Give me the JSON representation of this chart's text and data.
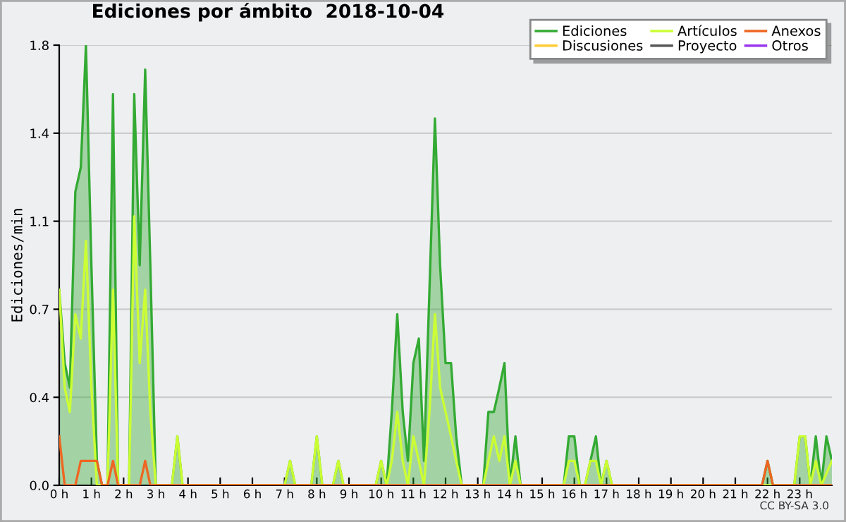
{
  "chart_data": {
    "type": "line",
    "title": "Ediciones por ámbito  2018-10-04",
    "ylabel": "Ediciones/min",
    "xlim": [
      0,
      24
    ],
    "xticks": [
      {
        "value": 0,
        "label": "0 h"
      },
      {
        "value": 1,
        "label": "1 h"
      },
      {
        "value": 2,
        "label": "2 h"
      },
      {
        "value": 3,
        "label": "3 h"
      },
      {
        "value": 4,
        "label": "4 h"
      },
      {
        "value": 5,
        "label": "5 h"
      },
      {
        "value": 6,
        "label": "6 h"
      },
      {
        "value": 7,
        "label": "7 h"
      },
      {
        "value": 8,
        "label": "8 h"
      },
      {
        "value": 9,
        "label": "9 h"
      },
      {
        "value": 10,
        "label": "10 h"
      },
      {
        "value": 11,
        "label": "11 h"
      },
      {
        "value": 12,
        "label": "12 h"
      },
      {
        "value": 13,
        "label": "13 h"
      },
      {
        "value": 14,
        "label": "14 h"
      },
      {
        "value": 15,
        "label": "15 h"
      },
      {
        "value": 16,
        "label": "16 h"
      },
      {
        "value": 17,
        "label": "17 h"
      },
      {
        "value": 18,
        "label": "18 h"
      },
      {
        "value": 19,
        "label": "19 h"
      },
      {
        "value": 20,
        "label": "20 h"
      },
      {
        "value": 21,
        "label": "21 h"
      },
      {
        "value": 22,
        "label": "22 h"
      },
      {
        "value": 23,
        "label": "23 h"
      }
    ],
    "ylim": [
      0,
      1.8
    ],
    "yticks": [
      {
        "value": 0,
        "label": "0.0"
      },
      {
        "value": 0.36,
        "label": "0.4"
      },
      {
        "value": 0.72,
        "label": "0.7"
      },
      {
        "value": 1.08,
        "label": "1.1"
      },
      {
        "value": 1.44,
        "label": "1.4"
      },
      {
        "value": 1.8,
        "label": "1.8"
      }
    ],
    "grid": "y",
    "legend": "top right",
    "annotations": [
      "CC BY-SA 3.0"
    ],
    "series": [
      {
        "name": "Ediciones",
        "type": "area",
        "color": "#33aa33",
        "x": [
          0,
          0.17,
          0.33,
          0.5,
          0.67,
          0.83,
          1.0,
          1.17,
          1.33,
          1.5,
          1.67,
          1.83,
          2.17,
          2.33,
          2.5,
          2.67,
          2.83,
          3.0,
          3.5,
          3.67,
          3.83,
          7.0,
          7.17,
          7.33,
          7.83,
          8.0,
          8.17,
          8.5,
          8.67,
          8.83,
          9.83,
          10.0,
          10.17,
          10.33,
          10.5,
          10.67,
          10.83,
          11.0,
          11.17,
          11.33,
          11.5,
          11.67,
          11.83,
          12.0,
          12.17,
          12.33,
          12.5,
          13.17,
          13.33,
          13.5,
          13.67,
          13.83,
          14.0,
          14.17,
          14.33,
          15.67,
          15.83,
          16.0,
          16.17,
          16.33,
          16.5,
          16.67,
          16.83,
          17.0,
          17.17,
          21.83,
          22.0,
          22.17,
          22.83,
          23.0,
          23.17,
          23.33,
          23.5,
          23.67,
          23.83,
          24.0
        ],
        "values": [
          0.8,
          0.5,
          0.4,
          1.2,
          1.3,
          1.8,
          0.9,
          0.1,
          0,
          0,
          1.6,
          0,
          0,
          1.6,
          0.9,
          1.7,
          0.9,
          0,
          0,
          0.2,
          0,
          0,
          0.1,
          0,
          0,
          0.2,
          0,
          0,
          0.1,
          0,
          0,
          0.1,
          0,
          0.3,
          0.7,
          0.3,
          0.1,
          0.5,
          0.6,
          0.1,
          0.8,
          1.5,
          0.9,
          0.5,
          0.5,
          0.2,
          0,
          0,
          0.3,
          0.3,
          0.4,
          0.5,
          0,
          0.2,
          0,
          0,
          0.2,
          0.2,
          0,
          0,
          0.1,
          0.2,
          0,
          0.1,
          0,
          0,
          0.1,
          0,
          0,
          0.2,
          0.2,
          0,
          0.2,
          0,
          0.2,
          0.1
        ]
      },
      {
        "name": "Artículos",
        "color": "#ccff33",
        "x": [
          0,
          0.17,
          0.33,
          0.5,
          0.67,
          0.83,
          1.0,
          1.17,
          1.5,
          1.67,
          1.83,
          2.17,
          2.33,
          2.5,
          2.67,
          2.83,
          3.0,
          3.5,
          3.67,
          3.83,
          7.0,
          7.17,
          7.33,
          7.83,
          8.0,
          8.17,
          8.5,
          8.67,
          8.83,
          9.83,
          10.0,
          10.17,
          10.33,
          10.5,
          10.67,
          10.83,
          11.0,
          11.17,
          11.33,
          11.5,
          11.67,
          11.83,
          12.0,
          12.17,
          12.33,
          12.5,
          13.17,
          13.33,
          13.5,
          13.67,
          13.83,
          14.0,
          14.17,
          14.33,
          15.67,
          15.83,
          16.0,
          16.17,
          16.33,
          16.5,
          16.67,
          16.83,
          17.0,
          17.17,
          22.83,
          23.0,
          23.17,
          23.33,
          23.5,
          23.67,
          24.0
        ],
        "values": [
          0.8,
          0.4,
          0.3,
          0.7,
          0.6,
          1.0,
          0.4,
          0,
          0,
          0.8,
          0,
          0,
          1.1,
          0.5,
          0.8,
          0.3,
          0,
          0,
          0.2,
          0,
          0,
          0.1,
          0,
          0,
          0.2,
          0,
          0,
          0.1,
          0,
          0,
          0.1,
          0,
          0.1,
          0.3,
          0.1,
          0,
          0.2,
          0.1,
          0,
          0.3,
          0.7,
          0.4,
          0.3,
          0.2,
          0.1,
          0,
          0,
          0.1,
          0.2,
          0.1,
          0.2,
          0,
          0.1,
          0,
          0,
          0.1,
          0.1,
          0,
          0,
          0.1,
          0.1,
          0,
          0.1,
          0,
          0,
          0.2,
          0.2,
          0,
          0.1,
          0,
          0.1
        ]
      },
      {
        "name": "Anexos",
        "color": "#ee6622",
        "x": [
          0,
          0.17,
          0.5,
          0.67,
          1.17,
          1.33,
          1.5,
          1.67,
          1.83,
          2.5,
          2.67,
          2.83,
          21.83,
          22.0,
          22.17,
          24.0
        ],
        "values": [
          0.2,
          0,
          0,
          0.1,
          0.1,
          0,
          0,
          0.1,
          0,
          0,
          0.1,
          0,
          0,
          0.1,
          0,
          0
        ]
      },
      {
        "name": "Discusiones",
        "color": "#ffcc33"
      },
      {
        "name": "Proyecto",
        "color": "#555555"
      },
      {
        "name": "Otros",
        "color": "#9933ee"
      }
    ]
  }
}
